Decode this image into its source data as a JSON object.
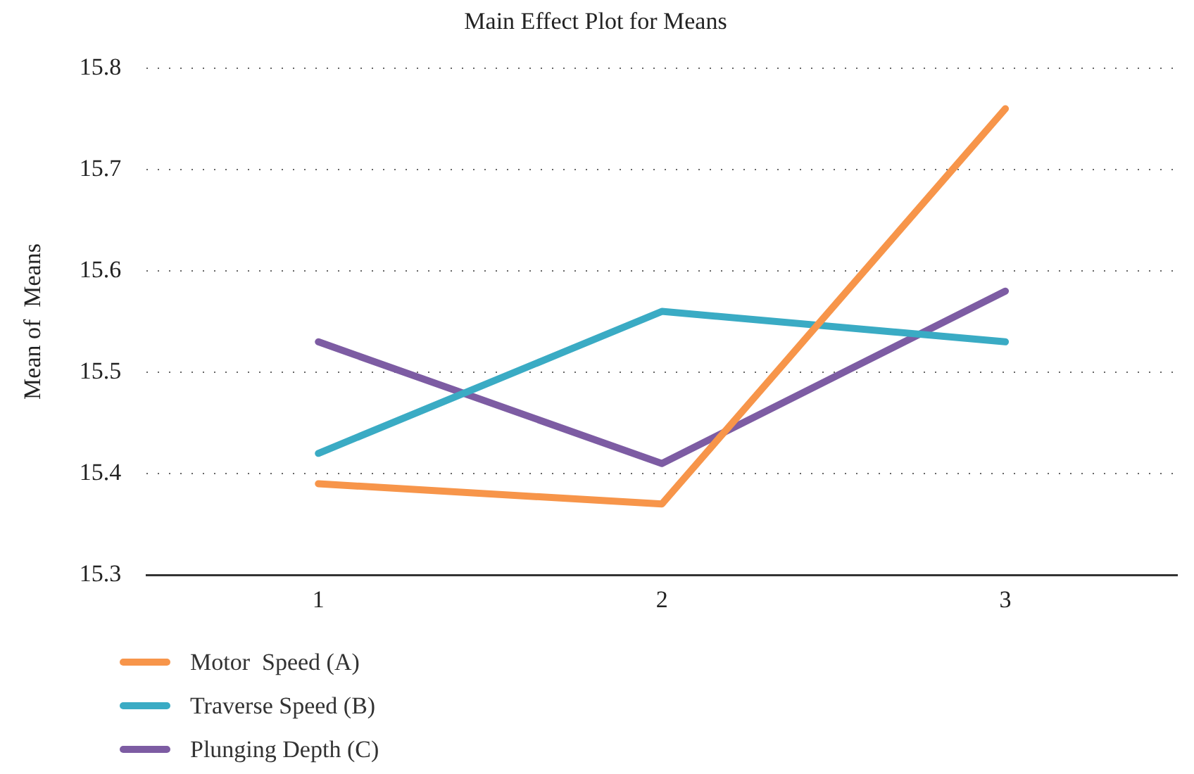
{
  "chart_data": {
    "type": "line",
    "title": "Main Effect Plot for Means",
    "ylabel": "Mean of  Means",
    "categories": [
      "1",
      "2",
      "3"
    ],
    "series": [
      {
        "name": "Motor  Speed (A)",
        "color": "#f7954a",
        "values": [
          15.39,
          15.37,
          15.76
        ]
      },
      {
        "name": "Traverse Speed (B)",
        "color": "#3aabc4",
        "values": [
          15.42,
          15.56,
          15.53
        ]
      },
      {
        "name": "Plunging Depth (C)",
        "color": "#7d5ca3",
        "values": [
          15.53,
          15.41,
          15.58
        ]
      }
    ],
    "ylim": [
      15.3,
      15.8
    ],
    "yticks": [
      15.3,
      15.4,
      15.5,
      15.6,
      15.7,
      15.8
    ],
    "grid": "y",
    "legend": "bottom left",
    "marker": "none",
    "line_style": "solid"
  }
}
